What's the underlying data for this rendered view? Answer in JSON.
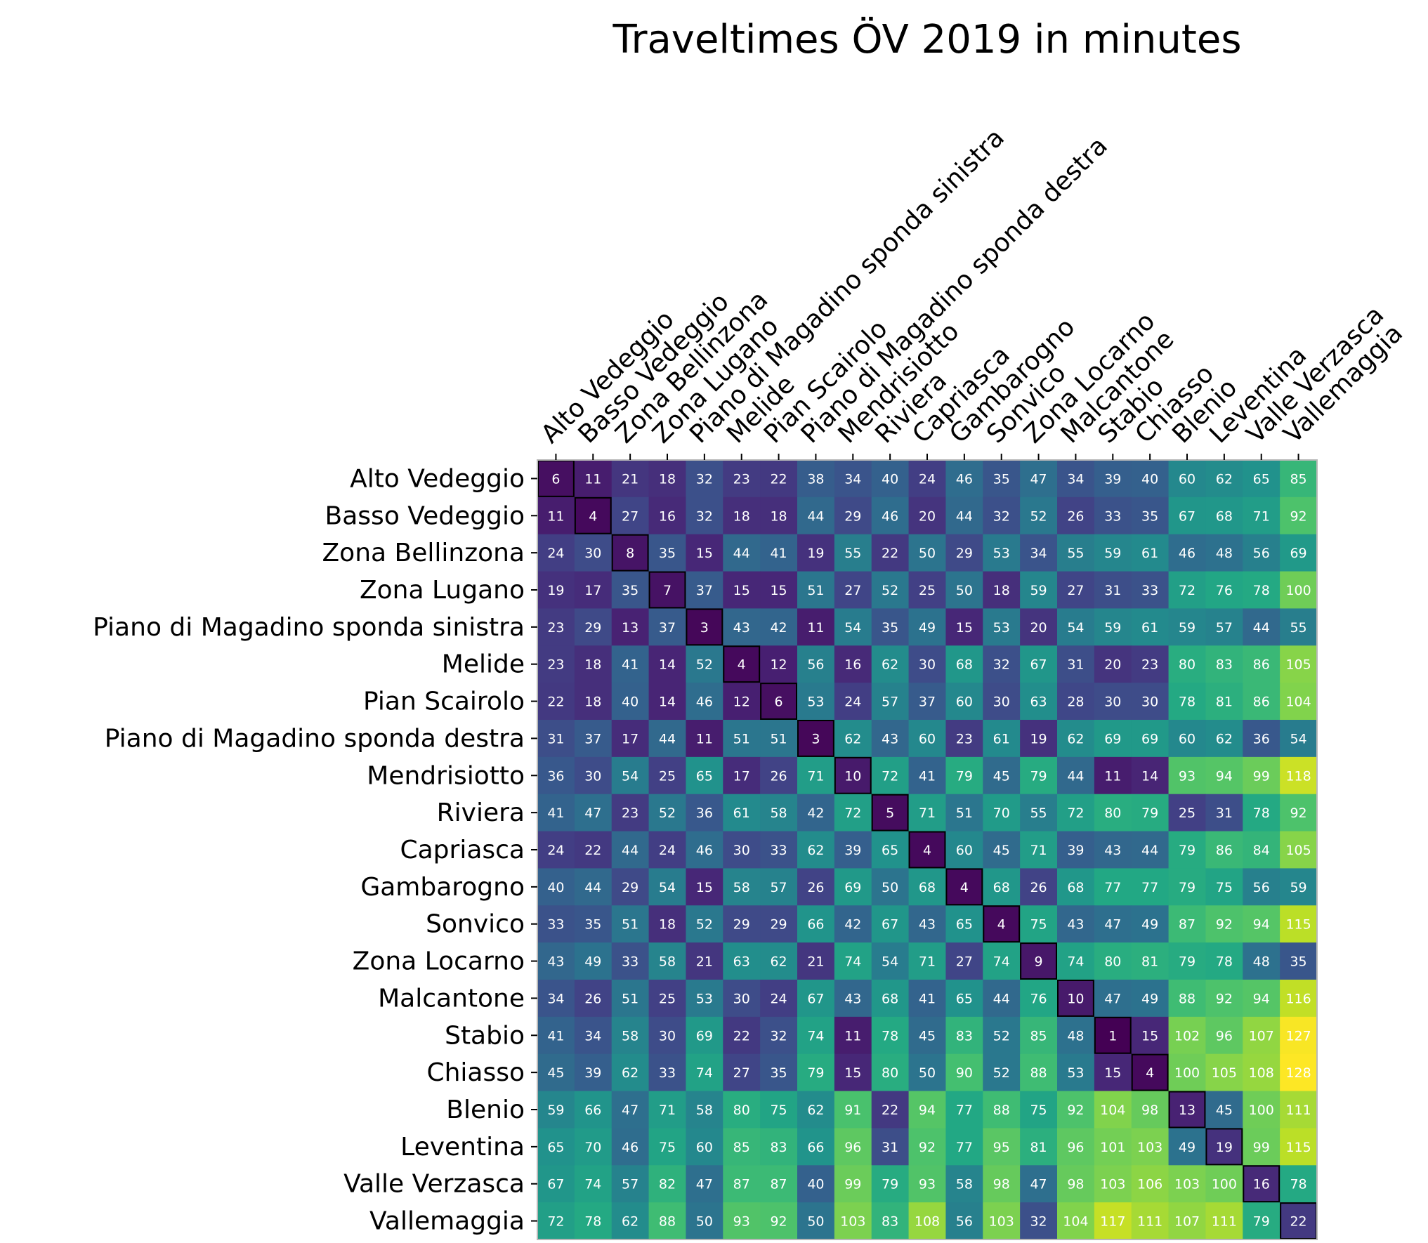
{
  "chart_data": {
    "type": "heatmap",
    "title": "Traveltimes ÖV 2019 in minutes",
    "colormap": "viridis",
    "vmin": 1,
    "vmax": 128,
    "diagonal_outlined": true,
    "rows": [
      "Alto Vedeggio",
      "Basso Vedeggio",
      "Zona Bellinzona",
      "Zona Lugano",
      "Piano di Magadino sponda sinistra",
      "Melide",
      "Pian Scairolo",
      "Piano di Magadino sponda destra",
      "Mendrisiotto",
      "Riviera",
      "Capriasca",
      "Gambarogno",
      "Sonvico",
      "Zona Locarno",
      "Malcantone",
      "Stabio",
      "Chiasso",
      "Blenio",
      "Leventina",
      "Valle Verzasca",
      "Vallemaggia"
    ],
    "columns": [
      "Alto Vedeggio",
      "Basso Vedeggio",
      "Zona Bellinzona",
      "Zona Lugano",
      "Piano di Magadino sponda sinistra",
      "Melide",
      "Pian Scairolo",
      "Piano di Magadino sponda destra",
      "Mendrisiotto",
      "Riviera",
      "Capriasca",
      "Gambarogno",
      "Sonvico",
      "Zona Locarno",
      "Malcantone",
      "Stabio",
      "Chiasso",
      "Blenio",
      "Leventina",
      "Valle Verzasca",
      "Vallemaggia"
    ],
    "values": [
      [
        6,
        11,
        21,
        18,
        32,
        23,
        22,
        38,
        34,
        40,
        24,
        46,
        35,
        47,
        34,
        39,
        40,
        60,
        62,
        65,
        85
      ],
      [
        11,
        4,
        27,
        16,
        32,
        18,
        18,
        44,
        29,
        46,
        20,
        44,
        32,
        52,
        26,
        33,
        35,
        67,
        68,
        71,
        92
      ],
      [
        24,
        30,
        8,
        35,
        15,
        44,
        41,
        19,
        55,
        22,
        50,
        29,
        53,
        34,
        55,
        59,
        61,
        46,
        48,
        56,
        69
      ],
      [
        19,
        17,
        35,
        7,
        37,
        15,
        15,
        51,
        27,
        52,
        25,
        50,
        18,
        59,
        27,
        31,
        33,
        72,
        76,
        78,
        100
      ],
      [
        23,
        29,
        13,
        37,
        3,
        43,
        42,
        11,
        54,
        35,
        49,
        15,
        53,
        20,
        54,
        59,
        61,
        59,
        57,
        44,
        55
      ],
      [
        23,
        18,
        41,
        14,
        52,
        4,
        12,
        56,
        16,
        62,
        30,
        68,
        32,
        67,
        31,
        20,
        23,
        80,
        83,
        86,
        105
      ],
      [
        22,
        18,
        40,
        14,
        46,
        12,
        6,
        53,
        24,
        57,
        37,
        60,
        30,
        63,
        28,
        30,
        30,
        78,
        81,
        86,
        104
      ],
      [
        31,
        37,
        17,
        44,
        11,
        51,
        51,
        3,
        62,
        43,
        60,
        23,
        61,
        19,
        62,
        69,
        69,
        60,
        62,
        36,
        54
      ],
      [
        36,
        30,
        54,
        25,
        65,
        17,
        26,
        71,
        10,
        72,
        41,
        79,
        45,
        79,
        44,
        11,
        14,
        93,
        94,
        99,
        118
      ],
      [
        41,
        47,
        23,
        52,
        36,
        61,
        58,
        42,
        72,
        5,
        71,
        51,
        70,
        55,
        72,
        80,
        79,
        25,
        31,
        78,
        92
      ],
      [
        24,
        22,
        44,
        24,
        46,
        30,
        33,
        62,
        39,
        65,
        4,
        60,
        45,
        71,
        39,
        43,
        44,
        79,
        86,
        84,
        105
      ],
      [
        40,
        44,
        29,
        54,
        15,
        58,
        57,
        26,
        69,
        50,
        68,
        4,
        68,
        26,
        68,
        77,
        77,
        79,
        75,
        56,
        59
      ],
      [
        33,
        35,
        51,
        18,
        52,
        29,
        29,
        66,
        42,
        67,
        43,
        65,
        4,
        75,
        43,
        47,
        49,
        87,
        92,
        94,
        115
      ],
      [
        43,
        49,
        33,
        58,
        21,
        63,
        62,
        21,
        74,
        54,
        71,
        27,
        74,
        9,
        74,
        80,
        81,
        79,
        78,
        48,
        35
      ],
      [
        34,
        26,
        51,
        25,
        53,
        30,
        24,
        67,
        43,
        68,
        41,
        65,
        44,
        76,
        10,
        47,
        49,
        88,
        92,
        94,
        116
      ],
      [
        41,
        34,
        58,
        30,
        69,
        22,
        32,
        74,
        11,
        78,
        45,
        83,
        52,
        85,
        48,
        1,
        15,
        102,
        96,
        107,
        127
      ],
      [
        45,
        39,
        62,
        33,
        74,
        27,
        35,
        79,
        15,
        80,
        50,
        90,
        52,
        88,
        53,
        15,
        4,
        100,
        105,
        108,
        128
      ],
      [
        59,
        66,
        47,
        71,
        58,
        80,
        75,
        62,
        91,
        22,
        94,
        77,
        88,
        75,
        92,
        104,
        98,
        13,
        45,
        100,
        111
      ],
      [
        65,
        70,
        46,
        75,
        60,
        85,
        83,
        66,
        96,
        31,
        92,
        77,
        95,
        81,
        96,
        101,
        103,
        49,
        19,
        99,
        115
      ],
      [
        67,
        74,
        57,
        82,
        47,
        87,
        87,
        40,
        99,
        79,
        93,
        58,
        98,
        47,
        98,
        103,
        106,
        103,
        100,
        16,
        78
      ],
      [
        72,
        78,
        62,
        88,
        50,
        93,
        92,
        50,
        103,
        83,
        108,
        56,
        103,
        32,
        104,
        117,
        111,
        107,
        111,
        79,
        22
      ]
    ]
  }
}
